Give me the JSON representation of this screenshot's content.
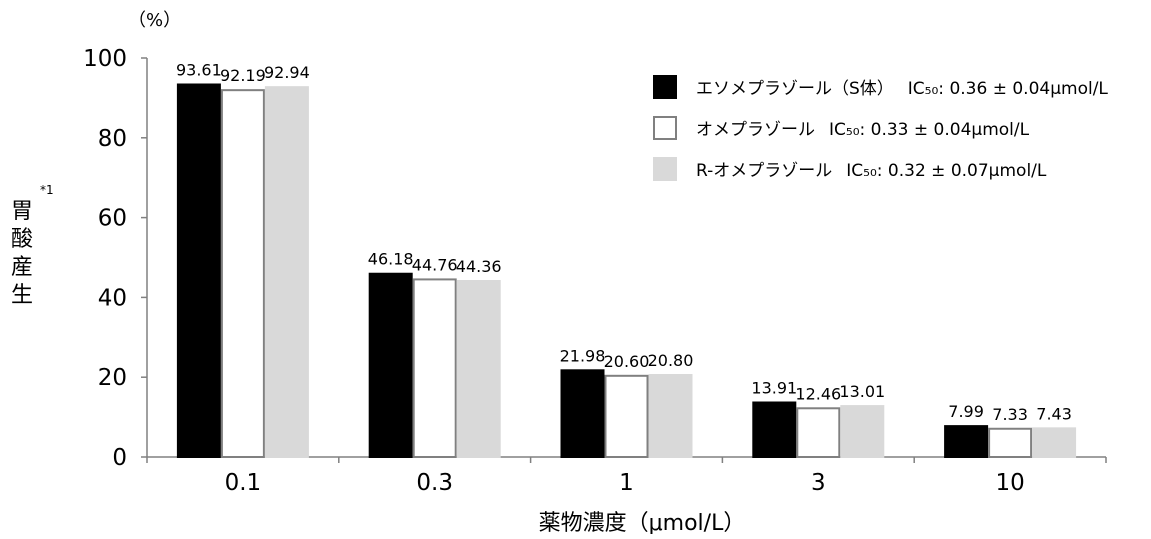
{
  "chart_data": {
    "type": "bar",
    "title": "",
    "categories": [
      "0.1",
      "0.3",
      "1",
      "3",
      "10"
    ],
    "series": [
      {
        "name": "エソメプラゾール（S体）",
        "ic50": "IC₅₀: 0.36 ± 0.04μmol/L",
        "values": [
          93.61,
          46.18,
          21.98,
          13.91,
          7.99
        ],
        "labels": [
          "93.61",
          "46.18",
          "21.98",
          "13.91",
          "7.99"
        ],
        "fill": "#000000",
        "stroke": "#000000"
      },
      {
        "name": "オメプラゾール",
        "ic50": "IC₅₀: 0.33 ± 0.04μmol/L",
        "values": [
          92.19,
          44.76,
          20.6,
          12.46,
          7.33
        ],
        "labels": [
          "92.19",
          "44.76",
          "20.60",
          "12.46",
          "7.33"
        ],
        "fill": "#ffffff",
        "stroke": "#808080"
      },
      {
        "name": "R-オメプラゾール",
        "ic50": "IC₅₀: 0.32 ± 0.07μmol/L",
        "values": [
          92.94,
          44.36,
          20.8,
          13.01,
          7.43
        ],
        "labels": [
          "92.94",
          "44.36",
          "20.80",
          "13.01",
          "7.43"
        ],
        "fill": "#d9d9d9",
        "stroke": "#d9d9d9"
      }
    ],
    "xlabel": "薬物濃度（μmol/L）",
    "ylabel": "胃酸産生",
    "ylabel_note": "*1",
    "y_unit": "（%）",
    "ylim": [
      0,
      100
    ],
    "yticks": [
      0,
      20,
      40,
      60,
      80,
      100
    ],
    "grid": false,
    "legend_position": "top-right"
  }
}
